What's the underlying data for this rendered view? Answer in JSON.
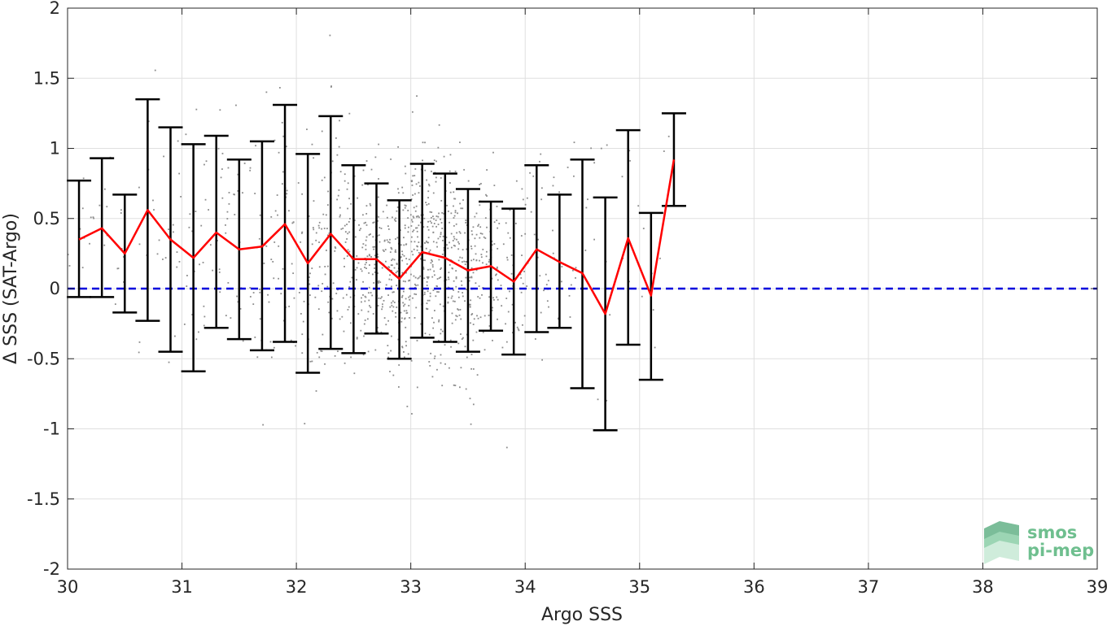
{
  "chart_data": {
    "type": "scatter",
    "xlabel": "Argo SSS",
    "ylabel": "Δ SSS (SAT-Argo)",
    "xlim": [
      30,
      39
    ],
    "ylim": [
      -2,
      2
    ],
    "xticks": [
      30,
      31,
      32,
      33,
      34,
      35,
      36,
      37,
      38,
      39
    ],
    "yticks": [
      2,
      1.5,
      1,
      0.5,
      0,
      -0.5,
      -1,
      -1.5,
      -2
    ],
    "grid": true,
    "reference_line": {
      "y": 0,
      "style": "dashed",
      "color": "#0000dd"
    },
    "binned": {
      "x": [
        30.1,
        30.3,
        30.5,
        30.7,
        30.9,
        31.1,
        31.3,
        31.5,
        31.7,
        31.9,
        32.1,
        32.3,
        32.5,
        32.7,
        32.9,
        33.1,
        33.3,
        33.5,
        33.7,
        33.9,
        34.1,
        34.3,
        34.5,
        34.7,
        34.9,
        35.1,
        35.3
      ],
      "mean": [
        0.35,
        0.43,
        0.25,
        0.56,
        0.35,
        0.22,
        0.4,
        0.28,
        0.3,
        0.46,
        0.18,
        0.39,
        0.21,
        0.21,
        0.07,
        0.26,
        0.22,
        0.13,
        0.16,
        0.05,
        0.28,
        0.19,
        0.11,
        -0.18,
        0.36,
        -0.05,
        0.92
      ],
      "upper": [
        0.77,
        0.93,
        0.67,
        1.35,
        1.15,
        1.03,
        1.09,
        0.92,
        1.05,
        1.31,
        0.96,
        1.23,
        0.88,
        0.75,
        0.63,
        0.89,
        0.82,
        0.71,
        0.62,
        0.57,
        0.88,
        0.67,
        0.92,
        0.65,
        1.13,
        0.54,
        1.25
      ],
      "lower": [
        -0.06,
        -0.06,
        -0.17,
        -0.23,
        -0.45,
        -0.59,
        -0.28,
        -0.36,
        -0.44,
        -0.38,
        -0.6,
        -0.43,
        -0.46,
        -0.32,
        -0.5,
        -0.35,
        -0.38,
        -0.45,
        -0.3,
        -0.47,
        -0.31,
        -0.28,
        -0.71,
        -1.01,
        -0.4,
        -0.65,
        0.59
      ],
      "mean_color": "#ff0000",
      "errorbar_color": "#000000"
    },
    "scatter_color": "#8c8c8c"
  },
  "logo": {
    "line1": "smos",
    "line2": "pi-mep"
  }
}
